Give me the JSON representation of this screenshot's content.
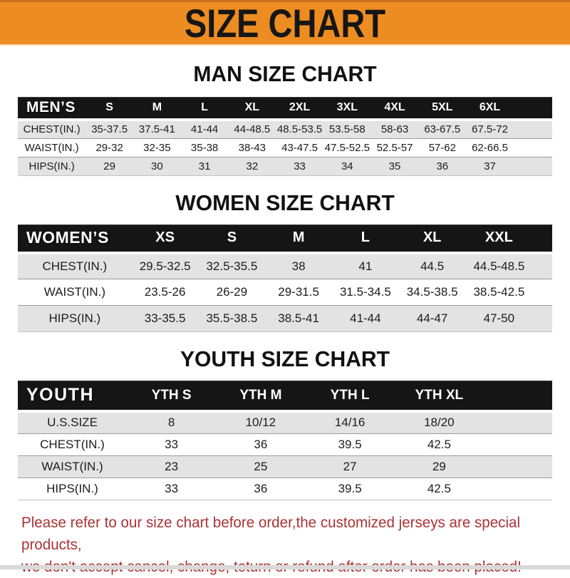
{
  "banner": {
    "title": "SIZE CHART",
    "bg_color": "#ed8c21",
    "text_color": "#161616"
  },
  "sections": {
    "men_heading": "MAN SIZE CHART",
    "women_heading": "WOMEN SIZE CHART",
    "youth_heading": "YOUTH SIZE CHART"
  },
  "tables": {
    "men": {
      "corner_label": "MEN’S",
      "sizes": [
        "S",
        "M",
        "L",
        "XL",
        "2XL",
        "3XL",
        "4XL",
        "5XL",
        "6XL"
      ],
      "rows": [
        {
          "label": "CHEST(IN.)",
          "values": [
            "35-37.5",
            "37.5-41",
            "41-44",
            "44-48.5",
            "48.5-53.5",
            "53.5-58",
            "58-63",
            "63-67.5",
            "67.5-72"
          ]
        },
        {
          "label": "WAIST(IN.)",
          "values": [
            "29-32",
            "32-35",
            "35-38",
            "38-43",
            "43-47.5",
            "47.5-52.5",
            "52.5-57",
            "57-62",
            "62-66.5"
          ]
        },
        {
          "label": "HIPS(IN.)",
          "values": [
            "29",
            "30",
            "31",
            "32",
            "33",
            "34",
            "35",
            "36",
            "37"
          ]
        }
      ]
    },
    "women": {
      "corner_label": "WOMEN’S",
      "sizes": [
        "XS",
        "S",
        "M",
        "L",
        "XL",
        "XXL"
      ],
      "rows": [
        {
          "label": "CHEST(IN.)",
          "values": [
            "29.5-32.5",
            "32.5-35.5",
            "38",
            "41",
            "44.5",
            "44.5-48.5"
          ]
        },
        {
          "label": "WAIST(IN.)",
          "values": [
            "23.5-26",
            "26-29",
            "29-31.5",
            "31.5-34.5",
            "34.5-38.5",
            "38.5-42.5"
          ]
        },
        {
          "label": "HIPS(IN.)",
          "values": [
            "33-35.5",
            "35.5-38.5",
            "38.5-41",
            "41-44",
            "44-47",
            "47-50"
          ]
        }
      ]
    },
    "youth": {
      "corner_label": "YOUTH",
      "sizes": [
        "YTH S",
        "YTH M",
        "YTH L",
        "YTH XL"
      ],
      "rows": [
        {
          "label": "U.S.SIZE",
          "values": [
            "8",
            "10/12",
            "14/16",
            "18/20"
          ]
        },
        {
          "label": "CHEST(IN.)",
          "values": [
            "33",
            "36",
            "39.5",
            "42.5"
          ]
        },
        {
          "label": "WAIST(IN.)",
          "values": [
            "23",
            "25",
            "27",
            "29"
          ]
        },
        {
          "label": "HIPS(IN.)",
          "values": [
            "33",
            "36",
            "39.5",
            "42.5"
          ]
        }
      ]
    }
  },
  "disclaimer": {
    "line1": "Please refer to our size chart before order,the customized jerseys are special products,",
    "line2": "we don't accept cancel, change, teturn or refund after order has been placed!",
    "text_color": "#a93335"
  }
}
